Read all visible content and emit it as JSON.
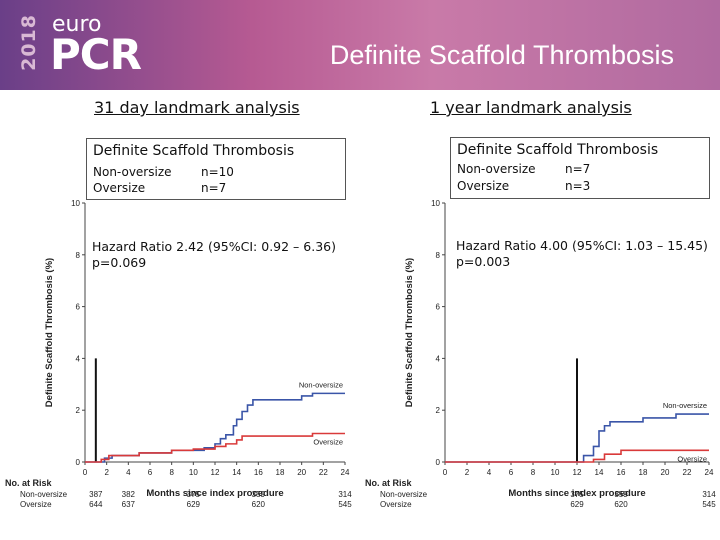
{
  "header": {
    "brand_year": "2018",
    "brand_small": "euro",
    "brand_large": "PCR",
    "title": "Definite Scaffold Thrombosis"
  },
  "left_panel": {
    "section_title": "31 day landmark analysis",
    "box_title": "Definite Scaffold Thrombosis",
    "rows": [
      {
        "label": "Non-oversize",
        "value": "n=10"
      },
      {
        "label": "Oversize",
        "value": "n=7"
      }
    ],
    "hazard_ratio": "Hazard Ratio 2.42 (95%CI: 0.92 – 6.36)",
    "p_value": "p=0.069"
  },
  "right_panel": {
    "section_title": "1 year landmark analysis",
    "box_title": "Definite Scaffold Thrombosis",
    "rows": [
      {
        "label": "Non-oversize",
        "value": "n=7"
      },
      {
        "label": "Oversize",
        "value": "n=3"
      }
    ],
    "hazard_ratio": "Hazard Ratio 4.00 (95%CI: 1.03 – 15.45)",
    "p_value": "p=0.003"
  },
  "chart_data": [
    {
      "type": "line",
      "ylabel": "Definite Scaffold Thrombosis (%)",
      "xlabel": "Months since index procedure",
      "xlim": [
        0,
        24
      ],
      "ylim": [
        0,
        10
      ],
      "x_ticks": [
        "0",
        "2",
        "4",
        "6",
        "8",
        "10",
        "12",
        "14",
        "16",
        "18",
        "20",
        "22",
        "24"
      ],
      "y_ticks": [
        "0",
        "2",
        "4",
        "6",
        "8",
        "10"
      ],
      "landmark_month": 1,
      "series": [
        {
          "name": "Non-oversize",
          "color": "#3a55a8",
          "points": [
            [
              0,
              0
            ],
            [
              1,
              0
            ],
            [
              1.8,
              0.15
            ],
            [
              2.5,
              0.25
            ],
            [
              5,
              0.35
            ],
            [
              8,
              0.45
            ],
            [
              11,
              0.55
            ],
            [
              12,
              0.7
            ],
            [
              12.5,
              0.9
            ],
            [
              13,
              1.05
            ],
            [
              13.7,
              1.4
            ],
            [
              14,
              1.65
            ],
            [
              14.5,
              1.95
            ],
            [
              15,
              2.2
            ],
            [
              15.5,
              2.4
            ],
            [
              20,
              2.55
            ],
            [
              21,
              2.65
            ],
            [
              24,
              2.65
            ]
          ]
        },
        {
          "name": "Oversize",
          "color": "#d93a3a",
          "points": [
            [
              0,
              0
            ],
            [
              1,
              0
            ],
            [
              1.5,
              0.1
            ],
            [
              2.2,
              0.25
            ],
            [
              5,
              0.35
            ],
            [
              8,
              0.45
            ],
            [
              10,
              0.5
            ],
            [
              12,
              0.6
            ],
            [
              13,
              0.7
            ],
            [
              14,
              0.85
            ],
            [
              14.5,
              1.0
            ],
            [
              20,
              1.0
            ],
            [
              21,
              1.1
            ],
            [
              24,
              1.1
            ]
          ]
        }
      ],
      "risk_table": {
        "title": "No. at Risk",
        "x": [
          "1",
          "4",
          "10",
          "16",
          "24"
        ],
        "rows": [
          {
            "name": "Non-oversize",
            "values": [
              "387",
              "382",
              "375",
              "359",
              "314"
            ]
          },
          {
            "name": "Oversize",
            "values": [
              "644",
              "637",
              "629",
              "620",
              "545"
            ]
          }
        ]
      }
    },
    {
      "type": "line",
      "ylabel": "Definite Scaffold Thrombosis (%)",
      "xlabel": "Months since index procedure",
      "xlim": [
        0,
        24
      ],
      "ylim": [
        0,
        10
      ],
      "x_ticks": [
        "0",
        "2",
        "4",
        "6",
        "8",
        "10",
        "12",
        "14",
        "16",
        "18",
        "20",
        "22",
        "24"
      ],
      "y_ticks": [
        "0",
        "2",
        "4",
        "6",
        "8",
        "10"
      ],
      "landmark_month": 12,
      "series": [
        {
          "name": "Non-oversize",
          "color": "#3a55a8",
          "points": [
            [
              0,
              0
            ],
            [
              12,
              0
            ],
            [
              12.6,
              0.25
            ],
            [
              13.5,
              0.6
            ],
            [
              14,
              1.2
            ],
            [
              14.5,
              1.4
            ],
            [
              15,
              1.55
            ],
            [
              18,
              1.7
            ],
            [
              21,
              1.85
            ],
            [
              24,
              1.85
            ]
          ]
        },
        {
          "name": "Oversize",
          "color": "#d93a3a",
          "points": [
            [
              0,
              0
            ],
            [
              12,
              0
            ],
            [
              13.5,
              0.1
            ],
            [
              14.5,
              0.3
            ],
            [
              16,
              0.45
            ],
            [
              24,
              0.45
            ]
          ]
        }
      ],
      "risk_table": {
        "title": "No. at Risk",
        "x": [
          "12",
          "16",
          "24"
        ],
        "rows": [
          {
            "name": "Non-oversize",
            "values": [
              "375",
              "359",
              "314"
            ]
          },
          {
            "name": "Oversize",
            "values": [
              "629",
              "620",
              "545"
            ]
          }
        ]
      }
    }
  ]
}
